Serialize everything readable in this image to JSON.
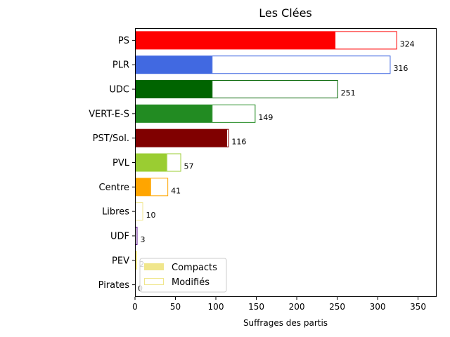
{
  "chart_data": {
    "type": "bar",
    "orientation": "horizontal",
    "stacked_overlay": true,
    "title": "Les Clées",
    "xlabel": "Suffrages des partis",
    "ylabel": "",
    "xlim": [
      0,
      373
    ],
    "xticks": [
      0,
      50,
      100,
      150,
      200,
      250,
      300,
      350
    ],
    "grid": false,
    "legend_position": "lower-left",
    "categories": [
      "PS",
      "PLR",
      "UDC",
      "VERT-E-S",
      "PST/Sol.",
      "PVL",
      "Centre",
      "Libres",
      "UDF",
      "PEV",
      "Pirates"
    ],
    "colors": [
      "#ff0000",
      "#4169e1",
      "#006400",
      "#228b22",
      "#800000",
      "#9acd32",
      "#ffa500",
      "#f0e68c",
      "#4b0082",
      "#ffd700",
      "#800080"
    ],
    "series": [
      {
        "name": "Compacts",
        "style": "filled",
        "values": [
          247,
          95,
          95,
          95,
          113,
          39,
          19,
          0,
          0,
          0,
          0
        ]
      },
      {
        "name": "Modifiés",
        "style": "outline",
        "values": [
          77,
          221,
          156,
          54,
          3,
          18,
          22,
          10,
          3,
          2,
          0
        ]
      }
    ],
    "totals": [
      "324",
      "316",
      "251",
      "149",
      "116",
      "57",
      "41",
      "10",
      "3",
      "2",
      "0"
    ],
    "legend": {
      "entries": [
        {
          "label": "Compacts",
          "style": "filled",
          "color": "#f0e68c"
        },
        {
          "label": "Modifiés",
          "style": "outline",
          "color": "#f0e68c"
        }
      ]
    }
  }
}
